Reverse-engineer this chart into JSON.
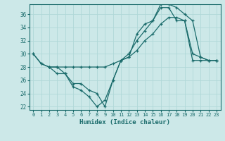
{
  "title": "",
  "xlabel": "Humidex (Indice chaleur)",
  "bg_color": "#cce8e8",
  "line_color": "#1a6b6b",
  "grid_color": "#b0d8d8",
  "xlim": [
    -0.5,
    23.5
  ],
  "ylim": [
    21.5,
    37.5
  ],
  "yticks": [
    22,
    24,
    26,
    28,
    30,
    32,
    34,
    36
  ],
  "xticks": [
    0,
    1,
    2,
    3,
    4,
    5,
    6,
    7,
    8,
    9,
    10,
    11,
    12,
    13,
    14,
    15,
    16,
    17,
    18,
    19,
    20,
    21,
    22,
    23
  ],
  "line1_x": [
    0,
    1,
    2,
    3,
    4,
    5,
    6,
    7,
    8,
    9,
    10,
    11,
    12,
    13,
    14,
    15,
    16,
    17,
    18,
    19,
    20,
    21,
    22,
    23
  ],
  "line1_y": [
    30,
    28.5,
    28,
    27,
    27,
    25,
    24.5,
    23.5,
    22,
    23,
    26,
    29,
    29.5,
    33,
    34.5,
    35,
    37,
    37,
    35,
    35,
    30,
    29.5,
    29,
    29
  ],
  "line2_x": [
    0,
    1,
    2,
    3,
    4,
    5,
    6,
    7,
    8,
    9,
    10,
    11,
    12,
    13,
    14,
    15,
    16,
    17,
    18,
    19,
    20,
    21,
    22,
    23
  ],
  "line2_y": [
    30,
    28.5,
    28,
    28,
    28,
    28,
    28,
    28,
    28,
    28,
    28.5,
    29,
    29.5,
    30.5,
    32,
    33,
    34.5,
    35.5,
    35.5,
    35,
    29,
    29,
    29,
    29
  ],
  "line3_x": [
    2,
    3,
    4,
    5,
    6,
    7,
    8,
    9,
    10,
    11,
    12,
    13,
    14,
    15,
    16,
    17,
    18,
    19,
    20,
    21,
    22,
    23
  ],
  "line3_y": [
    28,
    28,
    27,
    25.5,
    25.5,
    24.5,
    24,
    22,
    26,
    29,
    30,
    32,
    33.5,
    35,
    37.5,
    37.5,
    37,
    36,
    35,
    29.5,
    29,
    29
  ]
}
